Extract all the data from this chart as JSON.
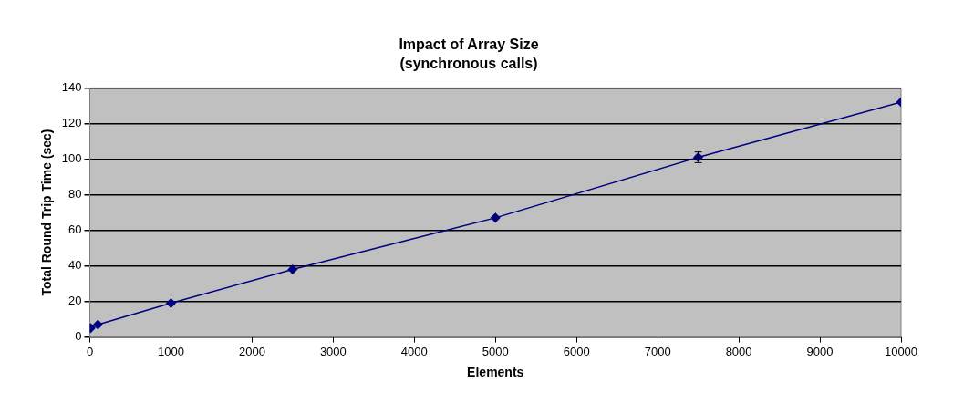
{
  "chart_data": {
    "type": "line",
    "title": "Impact of Array Size",
    "subtitle": "(synchronous calls)",
    "xlabel": "Elements",
    "ylabel": "Total Round Trip Time (sec)",
    "x": [
      10,
      100,
      1000,
      2500,
      5000,
      7500,
      10000
    ],
    "series": [
      {
        "color": "#000080",
        "values": [
          5,
          7,
          19,
          38,
          67,
          101,
          132
        ],
        "errors": [
          null,
          null,
          null,
          null,
          null,
          3,
          null
        ]
      }
    ],
    "xlim": [
      0,
      10000
    ],
    "xticks": [
      0,
      1000,
      2000,
      3000,
      4000,
      5000,
      6000,
      7000,
      8000,
      9000,
      10000
    ],
    "ylim": [
      0,
      140
    ],
    "yticks": [
      0,
      20,
      40,
      60,
      80,
      100,
      120,
      140
    ],
    "grid": "y",
    "legend": false,
    "marker": "diamond",
    "line_style": "solid"
  }
}
